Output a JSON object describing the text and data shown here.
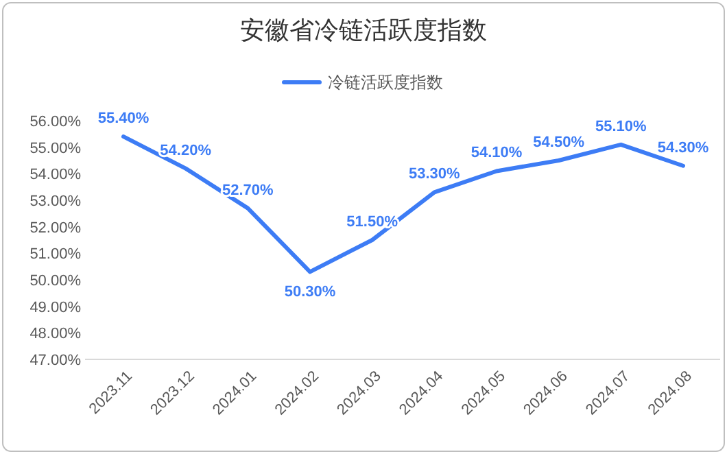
{
  "chart_data": {
    "type": "line",
    "title": "安徽省冷链活跃度指数",
    "categories": [
      "2023.11",
      "2023.12",
      "2024.01",
      "2024.02",
      "2024.03",
      "2024.04",
      "2024.05",
      "2024.06",
      "2024.07",
      "2024.08"
    ],
    "series": [
      {
        "name": "冷链活跃度指数",
        "color": "#3d7cf5",
        "values": [
          55.4,
          54.2,
          52.7,
          50.3,
          51.5,
          53.3,
          54.1,
          54.5,
          55.1,
          54.3
        ],
        "value_labels": [
          "55.40%",
          "54.20%",
          "52.70%",
          "50.30%",
          "51.50%",
          "53.30%",
          "54.10%",
          "54.50%",
          "55.10%",
          "54.30%"
        ]
      }
    ],
    "ylim": [
      47,
      56
    ],
    "yticks": [
      {
        "value": 47,
        "label": "47.00%"
      },
      {
        "value": 48,
        "label": "48.00%"
      },
      {
        "value": 49,
        "label": "49.00%"
      },
      {
        "value": 50,
        "label": "50.00%"
      },
      {
        "value": 51,
        "label": "51.00%"
      },
      {
        "value": 52,
        "label": "52.00%"
      },
      {
        "value": 53,
        "label": "53.00%"
      },
      {
        "value": 54,
        "label": "54.00%"
      },
      {
        "value": 55,
        "label": "55.00%"
      },
      {
        "value": 56,
        "label": "56.00%"
      }
    ],
    "legend": "top",
    "grid": false,
    "marker": "none",
    "line_style": "solid"
  }
}
